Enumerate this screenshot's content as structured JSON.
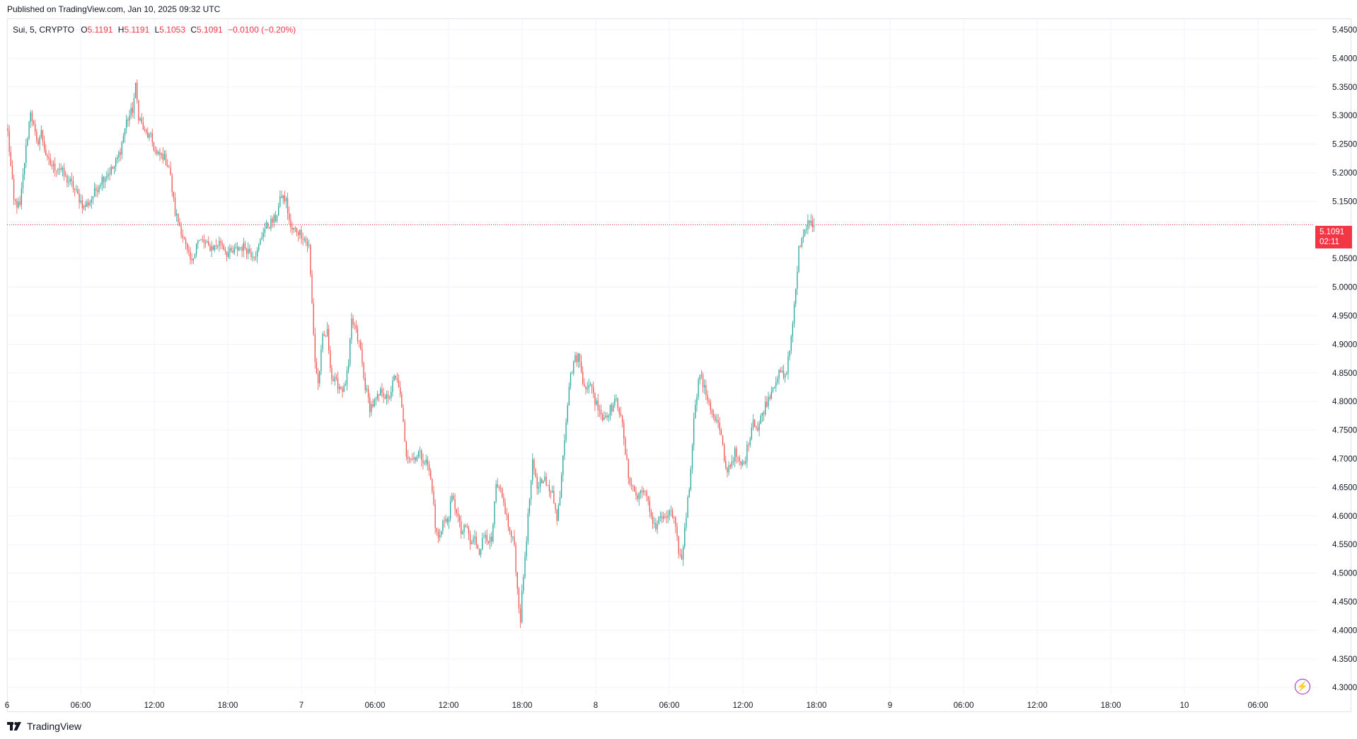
{
  "header": {
    "published": "Published on TradingView.com, Jan 10, 2025 09:32 UTC"
  },
  "legend": {
    "symbol": "Sui, 5, CRYPTO",
    "open_label": "O",
    "open": "5.1191",
    "high_label": "H",
    "high": "5.1191",
    "low_label": "L",
    "low": "5.1053",
    "close_label": "C",
    "close": "5.1091",
    "change": "−0.0100 (−0.20%)"
  },
  "last_price": {
    "price": "5.1091",
    "countdown": "02:11",
    "value": 5.1091,
    "color": "#f23645"
  },
  "footer": {
    "brand": "TradingView"
  },
  "colors": {
    "up": "#26a69a",
    "down": "#ef5350",
    "grid": "#f0f3fa",
    "text": "#131722"
  },
  "chart_data": {
    "type": "candlestick",
    "symbol": "Sui",
    "interval": "5",
    "yaxis_ticks": [
      "5.4500",
      "5.4000",
      "5.3500",
      "5.3000",
      "5.2500",
      "5.2000",
      "5.1500",
      "5.0500",
      "5.0000",
      "4.9500",
      "4.9000",
      "4.8500",
      "4.8000",
      "4.7500",
      "4.7000",
      "4.6500",
      "4.6000",
      "4.5500",
      "4.5000",
      "4.4500",
      "4.4000",
      "4.3500",
      "4.3000"
    ],
    "xaxis_ticks": [
      "6",
      "06:00",
      "12:00",
      "18:00",
      "7",
      "06:00",
      "12:00",
      "18:00",
      "8",
      "06:00",
      "12:00",
      "18:00",
      "9",
      "06:00",
      "12:00",
      "18:00",
      "10",
      "06:00"
    ],
    "ylim": [
      4.3,
      5.45
    ],
    "grid": true,
    "price_path": [
      [
        0,
        5.27
      ],
      [
        4,
        5.15
      ],
      [
        8,
        5.14
      ],
      [
        11,
        5.22
      ],
      [
        15,
        5.31
      ],
      [
        19,
        5.25
      ],
      [
        22,
        5.27
      ],
      [
        26,
        5.22
      ],
      [
        30,
        5.21
      ],
      [
        34,
        5.21
      ],
      [
        38,
        5.19
      ],
      [
        42,
        5.18
      ],
      [
        46,
        5.16
      ],
      [
        50,
        5.14
      ],
      [
        54,
        5.15
      ],
      [
        58,
        5.17
      ],
      [
        62,
        5.19
      ],
      [
        66,
        5.2
      ],
      [
        70,
        5.21
      ],
      [
        74,
        5.24
      ],
      [
        78,
        5.29
      ],
      [
        82,
        5.31
      ],
      [
        84,
        5.35
      ],
      [
        86,
        5.3
      ],
      [
        90,
        5.27
      ],
      [
        94,
        5.26
      ],
      [
        98,
        5.23
      ],
      [
        102,
        5.23
      ],
      [
        106,
        5.21
      ],
      [
        110,
        5.13
      ],
      [
        114,
        5.1
      ],
      [
        118,
        5.06
      ],
      [
        121,
        5.04
      ],
      [
        124,
        5.08
      ],
      [
        128,
        5.08
      ],
      [
        132,
        5.07
      ],
      [
        136,
        5.07
      ],
      [
        140,
        5.08
      ],
      [
        144,
        5.06
      ],
      [
        148,
        5.06
      ],
      [
        152,
        5.07
      ],
      [
        156,
        5.07
      ],
      [
        160,
        5.06
      ],
      [
        164,
        5.06
      ],
      [
        168,
        5.1
      ],
      [
        172,
        5.11
      ],
      [
        176,
        5.12
      ],
      [
        180,
        5.16
      ],
      [
        183,
        5.15
      ],
      [
        186,
        5.1
      ],
      [
        190,
        5.1
      ],
      [
        194,
        5.09
      ],
      [
        198,
        5.07
      ],
      [
        200,
        4.97
      ],
      [
        202,
        4.87
      ],
      [
        204,
        4.83
      ],
      [
        207,
        4.91
      ],
      [
        210,
        4.92
      ],
      [
        213,
        4.84
      ],
      [
        217,
        4.83
      ],
      [
        221,
        4.82
      ],
      [
        224,
        4.86
      ],
      [
        226,
        4.94
      ],
      [
        228,
        4.93
      ],
      [
        232,
        4.89
      ],
      [
        234,
        4.84
      ],
      [
        238,
        4.79
      ],
      [
        242,
        4.8
      ],
      [
        246,
        4.82
      ],
      [
        250,
        4.8
      ],
      [
        254,
        4.84
      ],
      [
        257,
        4.83
      ],
      [
        260,
        4.76
      ],
      [
        262,
        4.71
      ],
      [
        266,
        4.7
      ],
      [
        270,
        4.71
      ],
      [
        273,
        4.7
      ],
      [
        276,
        4.69
      ],
      [
        279,
        4.65
      ],
      [
        281,
        4.58
      ],
      [
        283,
        4.56
      ],
      [
        286,
        4.59
      ],
      [
        289,
        4.59
      ],
      [
        292,
        4.63
      ],
      [
        295,
        4.61
      ],
      [
        298,
        4.57
      ],
      [
        302,
        4.58
      ],
      [
        304,
        4.55
      ],
      [
        307,
        4.56
      ],
      [
        310,
        4.54
      ],
      [
        314,
        4.57
      ],
      [
        318,
        4.55
      ],
      [
        321,
        4.65
      ],
      [
        324,
        4.64
      ],
      [
        327,
        4.61
      ],
      [
        330,
        4.57
      ],
      [
        333,
        4.55
      ],
      [
        335,
        4.47
      ],
      [
        337,
        4.42
      ],
      [
        338,
        4.46
      ],
      [
        340,
        4.53
      ],
      [
        343,
        4.63
      ],
      [
        345,
        4.69
      ],
      [
        348,
        4.65
      ],
      [
        352,
        4.67
      ],
      [
        356,
        4.64
      ],
      [
        358,
        4.65
      ],
      [
        361,
        4.59
      ],
      [
        363,
        4.64
      ],
      [
        365,
        4.71
      ],
      [
        367,
        4.77
      ],
      [
        369,
        4.83
      ],
      [
        372,
        4.87
      ],
      [
        375,
        4.88
      ],
      [
        378,
        4.84
      ],
      [
        381,
        4.82
      ],
      [
        384,
        4.83
      ],
      [
        386,
        4.8
      ],
      [
        389,
        4.79
      ],
      [
        391,
        4.77
      ],
      [
        394,
        4.78
      ],
      [
        397,
        4.79
      ],
      [
        400,
        4.8
      ],
      [
        403,
        4.78
      ],
      [
        405,
        4.73
      ],
      [
        408,
        4.67
      ],
      [
        411,
        4.65
      ],
      [
        414,
        4.63
      ],
      [
        417,
        4.65
      ],
      [
        420,
        4.63
      ],
      [
        423,
        4.6
      ],
      [
        426,
        4.58
      ],
      [
        429,
        4.6
      ],
      [
        432,
        4.59
      ],
      [
        435,
        4.61
      ],
      [
        438,
        4.59
      ],
      [
        441,
        4.54
      ],
      [
        443,
        4.52
      ],
      [
        445,
        4.58
      ],
      [
        448,
        4.65
      ],
      [
        450,
        4.73
      ],
      [
        452,
        4.8
      ],
      [
        455,
        4.85
      ],
      [
        458,
        4.82
      ],
      [
        461,
        4.8
      ],
      [
        464,
        4.77
      ],
      [
        467,
        4.76
      ],
      [
        470,
        4.72
      ],
      [
        472,
        4.68
      ],
      [
        475,
        4.69
      ],
      [
        478,
        4.71
      ],
      [
        481,
        4.69
      ],
      [
        484,
        4.69
      ],
      [
        487,
        4.73
      ],
      [
        490,
        4.77
      ],
      [
        493,
        4.75
      ],
      [
        496,
        4.78
      ],
      [
        499,
        4.8
      ],
      [
        502,
        4.82
      ],
      [
        505,
        4.84
      ],
      [
        508,
        4.85
      ],
      [
        511,
        4.84
      ],
      [
        514,
        4.89
      ],
      [
        516,
        4.94
      ],
      [
        518,
        4.99
      ],
      [
        520,
        5.07
      ],
      [
        523,
        5.09
      ],
      [
        526,
        5.12
      ],
      [
        528,
        5.11
      ],
      [
        530,
        5.1091
      ]
    ]
  }
}
